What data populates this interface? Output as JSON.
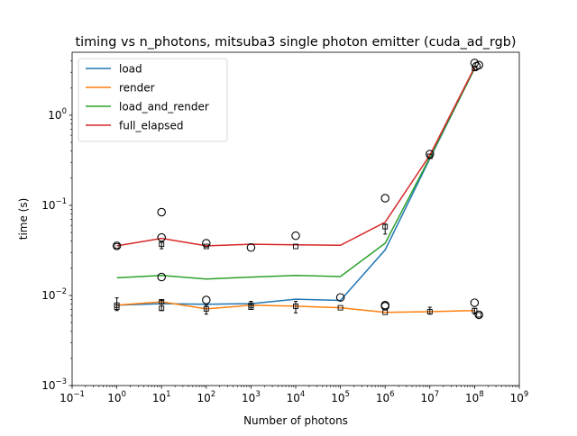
{
  "chart_data": {
    "type": "line",
    "title": "timing vs n_photons, mitsuba3 single photon emitter (cuda_ad_rgb)",
    "xlabel": "Number of photons",
    "ylabel": "time (s)",
    "xscale": "log",
    "yscale": "log",
    "xlim": [
      0.1,
      1000000000
    ],
    "ylim": [
      0.001,
      5
    ],
    "x_ticks": [
      {
        "value": 0.1,
        "base": "10",
        "exp": "−1"
      },
      {
        "value": 1,
        "base": "10",
        "exp": "0"
      },
      {
        "value": 10,
        "base": "10",
        "exp": "1"
      },
      {
        "value": 100,
        "base": "10",
        "exp": "2"
      },
      {
        "value": 1000,
        "base": "10",
        "exp": "3"
      },
      {
        "value": 10000,
        "base": "10",
        "exp": "4"
      },
      {
        "value": 100000,
        "base": "10",
        "exp": "5"
      },
      {
        "value": 1000000,
        "base": "10",
        "exp": "6"
      },
      {
        "value": 10000000,
        "base": "10",
        "exp": "7"
      },
      {
        "value": 100000000,
        "base": "10",
        "exp": "8"
      },
      {
        "value": 1000000000,
        "base": "10",
        "exp": "9"
      }
    ],
    "y_ticks": [
      {
        "value": 0.001,
        "base": "10",
        "exp": "−3"
      },
      {
        "value": 0.01,
        "base": "10",
        "exp": "−2"
      },
      {
        "value": 0.1,
        "base": "10",
        "exp": "−1"
      },
      {
        "value": 1,
        "base": "10",
        "exp": "0"
      }
    ],
    "grid": false,
    "legend": "upper left",
    "x": [
      1,
      10,
      100,
      1000,
      10000,
      100000,
      1000000,
      10000000,
      100000000
    ],
    "series": [
      {
        "name": "load",
        "color": "#1f77b4",
        "values": [
          0.0078,
          0.0081,
          0.008,
          0.0081,
          0.0091,
          0.0088,
          0.032,
          0.33,
          3.3
        ]
      },
      {
        "name": "render",
        "color": "#ff7f0e",
        "values": [
          0.0078,
          0.0085,
          0.0071,
          0.0078,
          0.0076,
          0.0073,
          0.0065,
          0.0066,
          0.0068
        ]
      },
      {
        "name": "load_and_render",
        "color": "#2ca02c",
        "values": [
          0.0157,
          0.0167,
          0.0152,
          0.016,
          0.0167,
          0.0162,
          0.038,
          0.34,
          3.3
        ]
      },
      {
        "name": "full_elapsed",
        "color": "#d62728",
        "values": [
          0.0355,
          0.043,
          0.0355,
          0.037,
          0.0365,
          0.036,
          0.065,
          0.36,
          3.4
        ]
      }
    ],
    "outliers": [
      {
        "x": 1,
        "y": 0.0355
      },
      {
        "x": 10,
        "y": 0.084
      },
      {
        "x": 10,
        "y": 0.044
      },
      {
        "x": 10,
        "y": 0.016
      },
      {
        "x": 100,
        "y": 0.038
      },
      {
        "x": 100,
        "y": 0.0089
      },
      {
        "x": 1000,
        "y": 0.034
      },
      {
        "x": 10000,
        "y": 0.046
      },
      {
        "x": 100000,
        "y": 0.0095
      },
      {
        "x": 1000000,
        "y": 0.12
      },
      {
        "x": 1000000,
        "y": 0.0078
      },
      {
        "x": 1000000,
        "y": 0.0076
      },
      {
        "x": 10000000,
        "y": 0.37
      },
      {
        "x": 100000000,
        "y": 3.8
      },
      {
        "x": 100000000,
        "y": 0.0083
      },
      {
        "x": 110000000,
        "y": 3.5
      },
      {
        "x": 125000000,
        "y": 3.6
      },
      {
        "x": 125000000,
        "y": 0.0061
      }
    ],
    "boxes": [
      {
        "x": 1,
        "y": 0.0078
      },
      {
        "x": 1,
        "y": 0.0074
      },
      {
        "x": 1,
        "y": 0.0355
      },
      {
        "x": 10,
        "y": 0.0085
      },
      {
        "x": 10,
        "y": 0.0072
      },
      {
        "x": 10,
        "y": 0.037
      },
      {
        "x": 100,
        "y": 0.0071
      },
      {
        "x": 100,
        "y": 0.035
      },
      {
        "x": 1000,
        "y": 0.0078
      },
      {
        "x": 1000,
        "y": 0.0074
      },
      {
        "x": 10000,
        "y": 0.0076
      },
      {
        "x": 10000,
        "y": 0.035
      },
      {
        "x": 100000,
        "y": 0.0073
      },
      {
        "x": 1000000,
        "y": 0.058
      },
      {
        "x": 1000000,
        "y": 0.0065
      },
      {
        "x": 10000000,
        "y": 0.35
      },
      {
        "x": 10000000,
        "y": 0.0066
      },
      {
        "x": 100000000,
        "y": 0.0068
      },
      {
        "x": 100000000,
        "y": 3.3
      },
      {
        "x": 125000000,
        "y": 0.0061
      }
    ],
    "errorbars": [
      {
        "x": 1,
        "ylo": 0.0068,
        "yhi": 0.0094
      },
      {
        "x": 10,
        "ylo": 0.0068,
        "yhi": 0.0088
      },
      {
        "x": 10,
        "ylo": 0.033,
        "yhi": 0.039
      },
      {
        "x": 100,
        "ylo": 0.0062,
        "yhi": 0.0078
      },
      {
        "x": 1000,
        "ylo": 0.007,
        "yhi": 0.0086
      },
      {
        "x": 10000,
        "ylo": 0.0064,
        "yhi": 0.0086
      },
      {
        "x": 1000000,
        "ylo": 0.048,
        "yhi": 0.062
      },
      {
        "x": 10000000,
        "ylo": 0.0062,
        "yhi": 0.0074
      },
      {
        "x": 100000000,
        "ylo": 0.0062,
        "yhi": 0.0072
      }
    ]
  }
}
